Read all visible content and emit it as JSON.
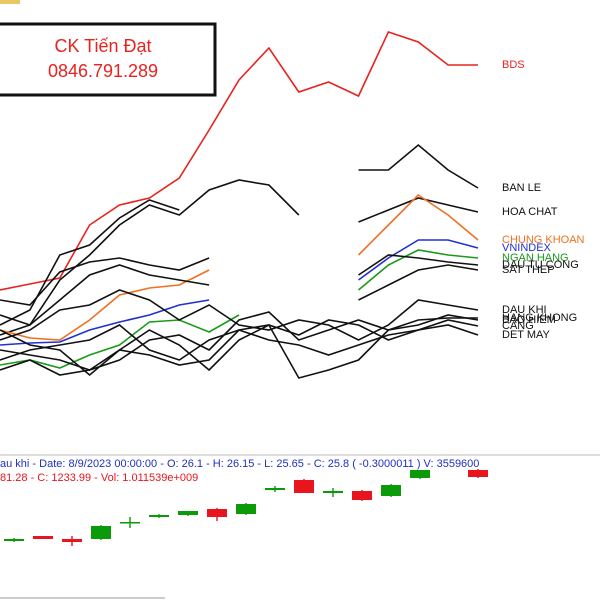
{
  "brand": {
    "name": "CK Tiến Đạt",
    "phone": "0846.791.289"
  },
  "chart_data": [
    {
      "type": "line",
      "x": [
        0,
        1,
        2,
        3,
        4,
        5,
        6,
        7,
        8,
        9,
        10,
        11,
        12,
        13,
        14,
        15,
        16
      ],
      "xlim": [
        0,
        16
      ],
      "ylim": [
        0,
        400
      ],
      "series": [
        {
          "name": "BDS",
          "color": "#e8231f",
          "values": [
            110,
            116,
            122,
            175,
            195,
            202,
            222,
            270,
            320,
            352,
            308,
            318,
            304,
            368,
            358,
            335,
            335
          ]
        },
        {
          "name": "BAN LE",
          "color": "#111111",
          "values": [
            65,
            75,
            120,
            145,
            175,
            195,
            185,
            210,
            220,
            215,
            185,
            null,
            230,
            230,
            255,
            230,
            212
          ]
        },
        {
          "name": "HOA CHAT",
          "color": "#111111",
          "values": [
            75,
            90,
            145,
            155,
            182,
            200,
            190,
            null,
            null,
            null,
            null,
            null,
            178,
            190,
            202,
            195,
            188
          ]
        },
        {
          "name": "CHUNG KHOAN",
          "color": "#f07020",
          "values": [
            70,
            62,
            60,
            80,
            105,
            112,
            115,
            130,
            null,
            null,
            null,
            null,
            145,
            175,
            205,
            185,
            160
          ]
        },
        {
          "name": "VNINDEX",
          "color": "#2030d0",
          "values": [
            55,
            57,
            58,
            70,
            78,
            85,
            95,
            100,
            null,
            null,
            null,
            null,
            120,
            142,
            160,
            160,
            152
          ]
        },
        {
          "name": "NGAN HANG",
          "color": "#1a9a1a",
          "values": [
            35,
            40,
            32,
            45,
            55,
            78,
            80,
            68,
            85,
            null,
            null,
            null,
            110,
            135,
            150,
            145,
            142
          ]
        },
        {
          "name": "DAU TU CONG",
          "color": "#111111",
          "values": [
            100,
            95,
            128,
            138,
            142,
            135,
            130,
            142,
            null,
            null,
            null,
            null,
            125,
            145,
            142,
            138,
            135
          ]
        },
        {
          "name": "SAT THEP",
          "color": "#111111",
          "values": [
            85,
            75,
            100,
            125,
            135,
            125,
            120,
            115,
            null,
            null,
            null,
            null,
            100,
            115,
            130,
            135,
            130
          ]
        },
        {
          "name": "DAU KHI",
          "color": "#111111",
          "values": [
            60,
            70,
            90,
            95,
            110,
            100,
            80,
            95,
            75,
            70,
            80,
            75,
            60,
            75,
            100,
            95,
            90
          ]
        },
        {
          "name": "HANG KHONG",
          "color": "#111111",
          "values": [
            50,
            45,
            40,
            30,
            40,
            60,
            65,
            50,
            80,
            88,
            60,
            70,
            80,
            70,
            80,
            82,
            82
          ]
        },
        {
          "name": "BAO HIEM",
          "color": "#111111",
          "values": [
            70,
            55,
            50,
            25,
            50,
            70,
            55,
            30,
            60,
            75,
            22,
            30,
            40,
            70,
            75,
            85,
            80
          ]
        },
        {
          "name": "CANG",
          "color": "#111111",
          "values": [
            40,
            50,
            55,
            60,
            75,
            50,
            40,
            60,
            70,
            75,
            65,
            80,
            75,
            60,
            70,
            80,
            74
          ]
        },
        {
          "name": "DET MAY",
          "color": "#111111",
          "values": [
            30,
            40,
            25,
            30,
            50,
            45,
            35,
            40,
            70,
            60,
            55,
            45,
            55,
            65,
            70,
            75,
            65
          ]
        }
      ]
    },
    {
      "type": "candlestick",
      "header": "au khi - Date: 8/9/2023 00:00:00 - O: 26.1 - H: 26.15 - L: 25.65 - C: 25.8 ( -0.3000011 ) V: 3559600",
      "subheader": "81.28 - C: 1233.99 - Vol: 1.011539e+009",
      "x": [
        0,
        1,
        2,
        3,
        4,
        5,
        6,
        7,
        8,
        9,
        10,
        11,
        12,
        13,
        14,
        16
      ],
      "xlim": [
        0,
        16
      ],
      "ylim": [
        0,
        100
      ],
      "up_color": "#0a9a0a",
      "down_color": "#e8141e",
      "open": [
        19,
        24,
        21,
        21,
        37,
        43,
        45,
        51,
        46,
        70,
        80,
        67,
        69,
        64,
        82,
        90
      ],
      "high": [
        22,
        24,
        24,
        35,
        43,
        46,
        49,
        52,
        57,
        74,
        81,
        72,
        70,
        76,
        90,
        91
      ],
      "low": [
        18,
        21,
        14,
        20,
        32,
        42,
        44,
        39,
        45,
        68,
        67,
        63,
        59,
        63,
        81,
        82
      ],
      "close": [
        21,
        21,
        18,
        34,
        38,
        45,
        49,
        43,
        56,
        72,
        67,
        69,
        60,
        75,
        90,
        83
      ]
    }
  ]
}
